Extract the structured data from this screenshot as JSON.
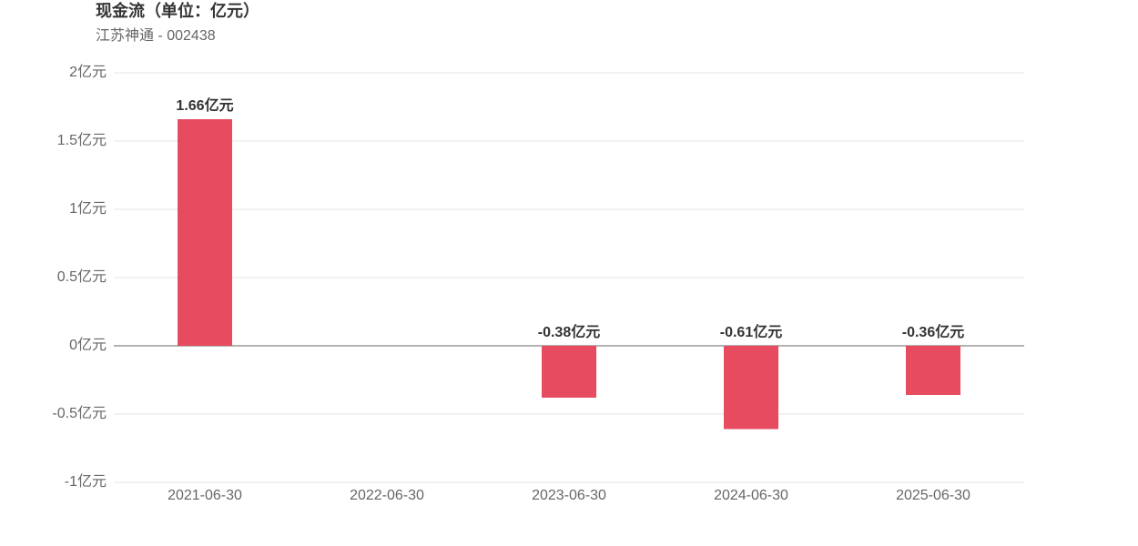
{
  "chart_data": {
    "type": "bar",
    "title": "现金流（单位：亿元）",
    "subtitle": "江苏神通 - 002438",
    "categories": [
      "2021-06-30",
      "2022-06-30",
      "2023-06-30",
      "2024-06-30",
      "2025-06-30"
    ],
    "values": [
      1.66,
      null,
      -0.38,
      -0.61,
      -0.36
    ],
    "value_labels": [
      "1.66亿元",
      null,
      "-0.38亿元",
      "-0.61亿元",
      "-0.36亿元"
    ],
    "color": "#e64b5f",
    "ylim": [
      -1,
      2
    ],
    "yticks": [
      {
        "value": -1,
        "label": "-1亿元"
      },
      {
        "value": -0.5,
        "label": "-0.5亿元"
      },
      {
        "value": 0,
        "label": "0亿元"
      },
      {
        "value": 0.5,
        "label": "0.5亿元"
      },
      {
        "value": 1,
        "label": "1亿元"
      },
      {
        "value": 1.5,
        "label": "1.5亿元"
      },
      {
        "value": 2,
        "label": "2亿元"
      }
    ],
    "grid": true
  }
}
